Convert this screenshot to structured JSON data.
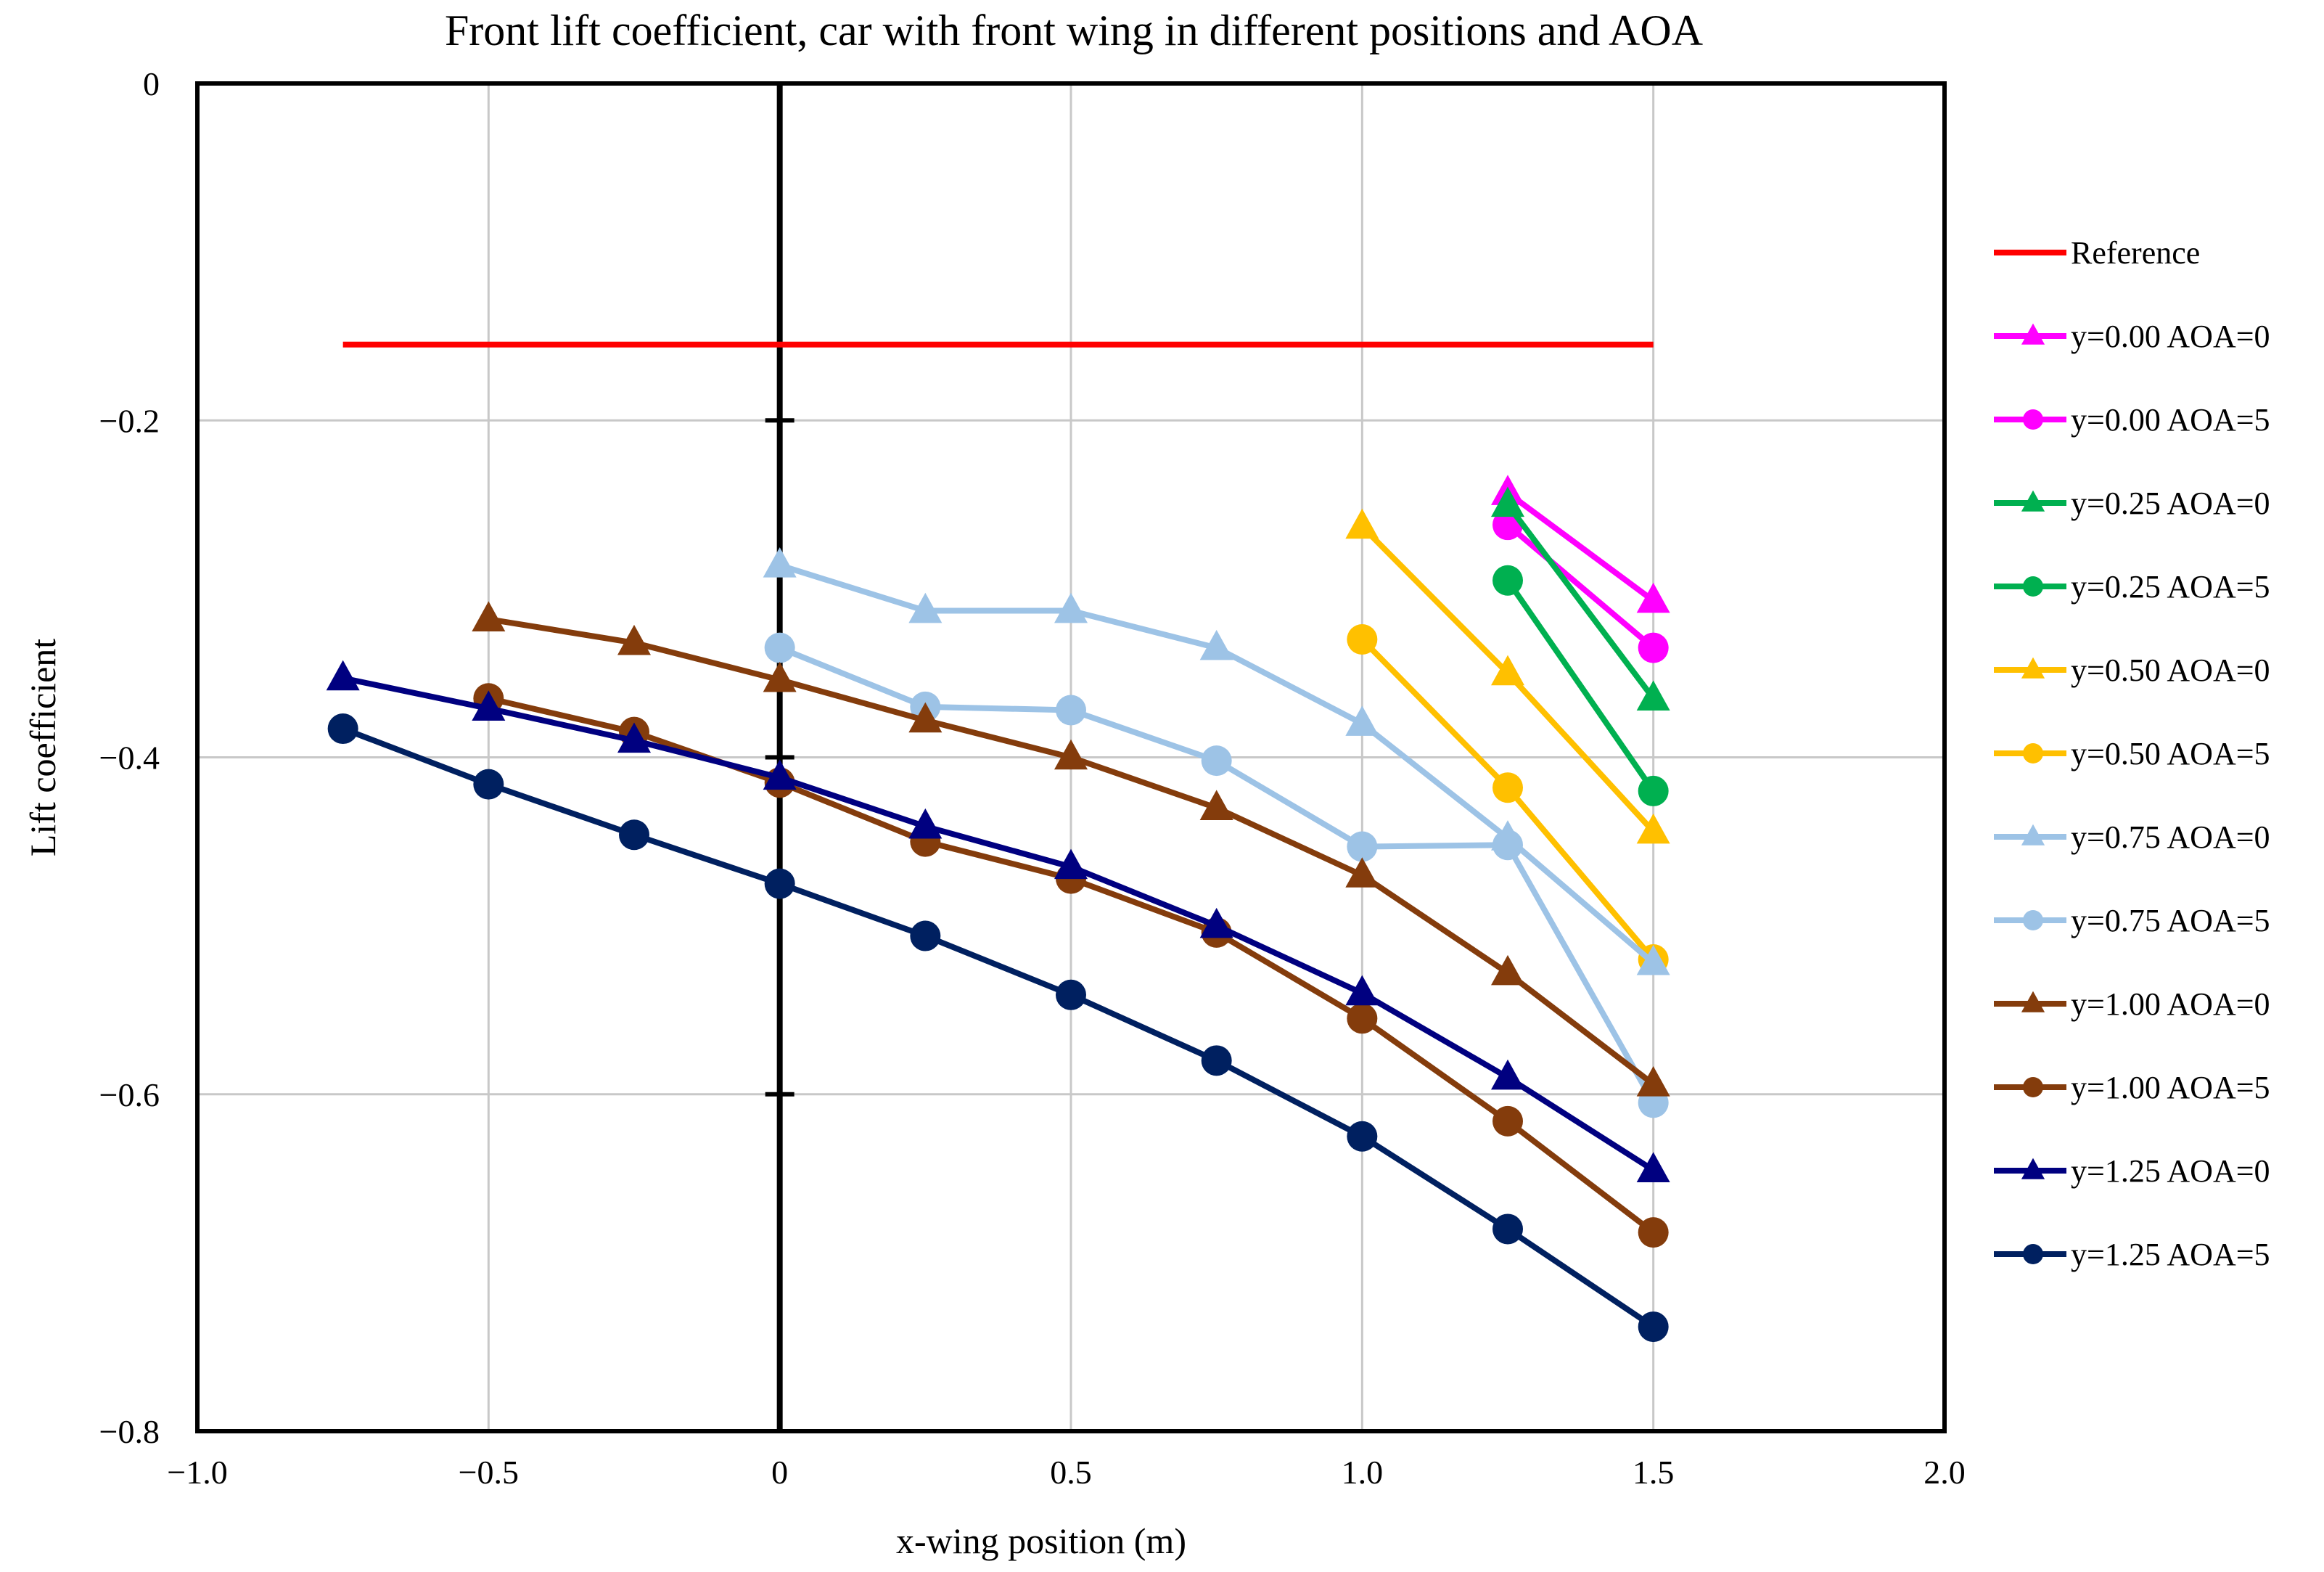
{
  "chart_data": {
    "type": "line",
    "title": "Front lift coefficient, car with front wing in different positions and AOA",
    "xlabel": "x-wing position (m)",
    "ylabel": "Lift coefficient",
    "xlim": [
      -1.0,
      2.0
    ],
    "ylim": [
      -0.8,
      0
    ],
    "xticks": [
      -1.0,
      -0.5,
      0,
      0.5,
      1.0,
      1.5,
      2.0
    ],
    "xtick_labels": [
      "−1.0",
      "−0.5",
      "0",
      "0.5",
      "1.0",
      "1.5",
      "2.0"
    ],
    "yticks": [
      0,
      -0.2,
      -0.4,
      -0.6,
      -0.8
    ],
    "ytick_labels": [
      "0",
      "−0.2",
      "−0.4",
      "−0.6",
      "−0.8"
    ],
    "grid": true,
    "legend_position": "right",
    "series": [
      {
        "name": "Reference",
        "color": "#ff0000",
        "marker": "none",
        "x": [
          -0.75,
          1.5
        ],
        "y": [
          -0.155,
          -0.155
        ]
      },
      {
        "name": "y=0.00 AOA=0",
        "color": "#ff00ff",
        "marker": "triangle",
        "x": [
          1.25,
          1.5
        ],
        "y": [
          -0.243,
          -0.307
        ]
      },
      {
        "name": "y=0.00 AOA=5",
        "color": "#ff00ff",
        "marker": "circle",
        "x": [
          1.25,
          1.5
        ],
        "y": [
          -0.262,
          -0.335
        ]
      },
      {
        "name": "y=0.25 AOA=0",
        "color": "#00b050",
        "marker": "triangle",
        "x": [
          1.25,
          1.5
        ],
        "y": [
          -0.25,
          -0.365
        ]
      },
      {
        "name": "y=0.25 AOA=5",
        "color": "#00b050",
        "marker": "circle",
        "x": [
          1.25,
          1.5
        ],
        "y": [
          -0.295,
          -0.42
        ]
      },
      {
        "name": "y=0.50 AOA=0",
        "color": "#ffc000",
        "marker": "triangle",
        "x": [
          1.0,
          1.25,
          1.5
        ],
        "y": [
          -0.263,
          -0.35,
          -0.444
        ]
      },
      {
        "name": "y=0.50 AOA=5",
        "color": "#ffc000",
        "marker": "circle",
        "x": [
          1.0,
          1.25,
          1.5
        ],
        "y": [
          -0.33,
          -0.418,
          -0.52
        ]
      },
      {
        "name": "y=0.75 AOA=0",
        "color": "#9dc3e6",
        "marker": "triangle",
        "x": [
          0,
          0.25,
          0.5,
          0.75,
          1.0,
          1.25,
          1.5
        ],
        "y": [
          -0.286,
          -0.313,
          -0.313,
          -0.335,
          -0.38,
          -0.448,
          -0.522
        ]
      },
      {
        "name": "y=0.75 AOA=5",
        "color": "#9dc3e6",
        "marker": "circle",
        "x": [
          0,
          0.25,
          0.5,
          0.75,
          1.0,
          1.25,
          1.5
        ],
        "y": [
          -0.335,
          -0.37,
          -0.372,
          -0.402,
          -0.453,
          -0.452,
          -0.605
        ]
      },
      {
        "name": "y=1.00 AOA=0",
        "color": "#843c0c",
        "marker": "triangle",
        "x": [
          -0.5,
          -0.25,
          0,
          0.25,
          0.5,
          0.75,
          1.0,
          1.25,
          1.5
        ],
        "y": [
          -0.318,
          -0.332,
          -0.354,
          -0.378,
          -0.4,
          -0.43,
          -0.47,
          -0.528,
          -0.594
        ]
      },
      {
        "name": "y=1.00 AOA=5",
        "color": "#843c0c",
        "marker": "circle",
        "x": [
          -0.5,
          -0.25,
          0,
          0.25,
          0.5,
          0.75,
          1.0,
          1.25,
          1.5
        ],
        "y": [
          -0.365,
          -0.385,
          -0.415,
          -0.45,
          -0.472,
          -0.504,
          -0.555,
          -0.616,
          -0.682
        ]
      },
      {
        "name": "y=1.25 AOA=0",
        "color": "#000080",
        "marker": "triangle",
        "x": [
          -0.75,
          -0.5,
          -0.25,
          0,
          0.25,
          0.5,
          0.75,
          1.0,
          1.25,
          1.5
        ],
        "y": [
          -0.353,
          -0.371,
          -0.39,
          -0.412,
          -0.441,
          -0.465,
          -0.5,
          -0.54,
          -0.59,
          -0.645
        ]
      },
      {
        "name": "y=1.25 AOA=5",
        "color": "#002060",
        "marker": "circle",
        "x": [
          -0.75,
          -0.5,
          -0.25,
          0,
          0.25,
          0.5,
          0.75,
          1.0,
          1.25,
          1.5
        ],
        "y": [
          -0.383,
          -0.416,
          -0.446,
          -0.475,
          -0.506,
          -0.541,
          -0.58,
          -0.625,
          -0.68,
          -0.738
        ]
      }
    ]
  }
}
